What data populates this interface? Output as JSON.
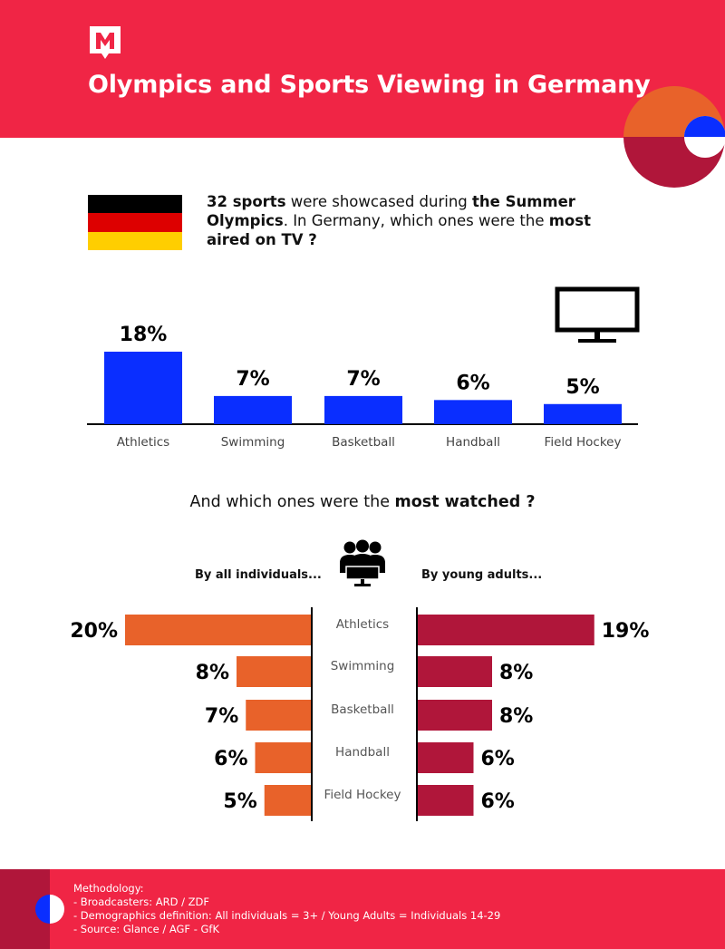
{
  "header": {
    "title": "Olympics and Sports Viewing in Germany",
    "brand_color": "#F02545"
  },
  "intro": {
    "part1_bold": "32 sports",
    "part2": " were showcased during ",
    "part3_bold": "the Summer Olympics",
    "part4": ". In Germany, which ones were the ",
    "part5_bold": "most aired on TV ?"
  },
  "flag_colors": [
    "#000000",
    "#DD0000",
    "#FFCE00"
  ],
  "section2": {
    "heading_plain": "And which ones were the ",
    "heading_bold": "most watched ?",
    "left_label": "By all individuals...",
    "right_label": "By young adults..."
  },
  "chart_data": [
    {
      "type": "bar",
      "categories": [
        "Athletics",
        "Swimming",
        "Basketball",
        "Handball",
        "Field Hockey"
      ],
      "values": [
        18,
        7,
        7,
        6,
        5
      ],
      "value_labels": [
        "18%",
        "7%",
        "7%",
        "6%",
        "5%"
      ],
      "color": "#0A2EFF"
    },
    {
      "type": "bar",
      "orientation": "horizontal-butterfly",
      "categories": [
        "Athletics",
        "Swimming",
        "Basketball",
        "Handball",
        "Field Hockey"
      ],
      "series": [
        {
          "name": "By all individuals...",
          "values": [
            20,
            8,
            7,
            6,
            5
          ],
          "labels": [
            "20%",
            "8%",
            "7%",
            "6%",
            "5%"
          ],
          "color": "#E8622A"
        },
        {
          "name": "By young adults...",
          "values": [
            19,
            8,
            8,
            6,
            6
          ],
          "labels": [
            "19%",
            "8%",
            "8%",
            "6%",
            "6%"
          ],
          "color": "#B0163A"
        }
      ]
    }
  ],
  "footer": {
    "lines": [
      "Methodology:",
      "- Broadcasters: ARD / ZDF",
      "- Demographics definition: All individuals = 3+ / Young Adults = Individuals 14-29",
      "- Source: Glance / AGF - GfK"
    ]
  }
}
